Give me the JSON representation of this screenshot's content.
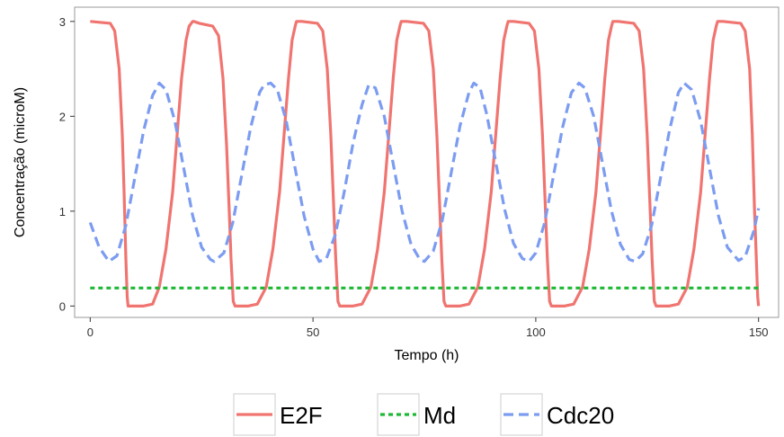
{
  "chart_data": {
    "type": "line",
    "title": "",
    "xlabel": "Tempo (h)",
    "ylabel": "Concentração (microM)",
    "xlim": [
      -3.5,
      154.5
    ],
    "ylim": [
      -0.12,
      3.15
    ],
    "x_ticks": [
      0,
      50,
      100,
      150
    ],
    "y_ticks": [
      0,
      1,
      2,
      3
    ],
    "x_tick_labels": [
      "0",
      "50",
      "100",
      "150"
    ],
    "y_tick_labels": [
      "0",
      "1",
      "2",
      "3"
    ],
    "grid": false,
    "legend_position": "bottom",
    "series": [
      {
        "name": "E2F",
        "color": "#f07470",
        "dash": "solid",
        "x": [
          0,
          4.5,
          5.5,
          6.5,
          7.2,
          7.6,
          8.0,
          8.3,
          8.5,
          9.0,
          12,
          14,
          15.5,
          17,
          18.5,
          19.5,
          20.5,
          21.5,
          22.2,
          23.0,
          23.3,
          24.5,
          27.5,
          28.8,
          29.8,
          30.6,
          31.2,
          31.6,
          32.1,
          32.5,
          35.5,
          37.5,
          39.5,
          41,
          42.5,
          43.5,
          44.5,
          45.3,
          46.0,
          46.3,
          47.5,
          51.0,
          52.2,
          53.2,
          54.0,
          54.6,
          55.1,
          55.6,
          56.0,
          59,
          61,
          63,
          64.5,
          66,
          67,
          68,
          68.8,
          69.5,
          69.8,
          71,
          74.8,
          76,
          77,
          77.8,
          78.4,
          78.9,
          79.4,
          79.8,
          83,
          85,
          87,
          88.5,
          90,
          91,
          92,
          92.8,
          93.5,
          93.8,
          95,
          98.5,
          99.7,
          100.7,
          101.5,
          102.1,
          102.6,
          103.1,
          103.5,
          106.5,
          108.5,
          110.5,
          112,
          113.5,
          114.5,
          115.5,
          116.3,
          117.0,
          117.3,
          118.5,
          122.0,
          123.2,
          124.2,
          125.0,
          125.6,
          126.1,
          126.6,
          127.0,
          130,
          132,
          134,
          135.5,
          137,
          138,
          139,
          139.8,
          140.5,
          140.8,
          142,
          146,
          147,
          148,
          148.6,
          149.1,
          149.5,
          149.8,
          150
        ],
        "y": [
          3.0,
          2.98,
          2.9,
          2.5,
          1.8,
          1.2,
          0.5,
          0.1,
          0,
          0,
          0,
          0.02,
          0.2,
          0.6,
          1.2,
          1.8,
          2.4,
          2.8,
          2.95,
          3.0,
          3.0,
          2.98,
          2.95,
          2.85,
          2.4,
          1.7,
          1.0,
          0.5,
          0.05,
          0,
          0,
          0.02,
          0.2,
          0.6,
          1.2,
          1.8,
          2.4,
          2.8,
          2.95,
          3.0,
          3.0,
          2.98,
          2.9,
          2.5,
          1.8,
          1.1,
          0.5,
          0.05,
          0,
          0,
          0.02,
          0.2,
          0.6,
          1.2,
          1.8,
          2.4,
          2.8,
          2.95,
          3.0,
          3.0,
          2.98,
          2.9,
          2.5,
          1.8,
          1.1,
          0.5,
          0.05,
          0,
          0,
          0.02,
          0.2,
          0.6,
          1.2,
          1.8,
          2.4,
          2.8,
          2.95,
          3.0,
          3.0,
          2.98,
          2.9,
          2.5,
          1.8,
          1.1,
          0.5,
          0.05,
          0,
          0,
          0.02,
          0.2,
          0.6,
          1.2,
          1.8,
          2.4,
          2.8,
          2.95,
          3.0,
          3.0,
          2.98,
          2.9,
          2.5,
          1.8,
          1.1,
          0.5,
          0.05,
          0,
          0,
          0.02,
          0.2,
          0.6,
          1.2,
          1.8,
          2.4,
          2.8,
          2.95,
          3.0,
          3.0,
          2.98,
          2.9,
          2.5,
          1.8,
          1.0,
          0.5,
          0.1,
          0
        ]
      },
      {
        "name": "Md",
        "color": "#1db835",
        "dash": "dotted",
        "x": [
          0,
          150
        ],
        "y": [
          0.19,
          0.19
        ]
      },
      {
        "name": "Cdc20",
        "color": "#7c9cf1",
        "dash": "dashed",
        "x": [
          0,
          2,
          4.2,
          6,
          8,
          10,
          12,
          14,
          15.5,
          17,
          19,
          21,
          23,
          25,
          27,
          27.8,
          30,
          32,
          34,
          36,
          38,
          39,
          40.5,
          42,
          44,
          46,
          48,
          50,
          51.4,
          53,
          55,
          57,
          59,
          61,
          62.5,
          64,
          66,
          68,
          70,
          72,
          74,
          75,
          77,
          79,
          81,
          83,
          85,
          86.1,
          87.5,
          89,
          91,
          93,
          95,
          97,
          98.5,
          100,
          102,
          104,
          106,
          108,
          109.7,
          111,
          113,
          115,
          117,
          119,
          121,
          122.3,
          124,
          126,
          128,
          130,
          132,
          133.3,
          135,
          137,
          139,
          141,
          143,
          145.5,
          147,
          149,
          150
        ],
        "y": [
          0.88,
          0.62,
          0.47,
          0.53,
          0.85,
          1.35,
          1.85,
          2.22,
          2.35,
          2.28,
          1.95,
          1.45,
          0.95,
          0.62,
          0.49,
          0.47,
          0.56,
          0.88,
          1.38,
          1.88,
          2.25,
          2.33,
          2.35,
          2.28,
          1.95,
          1.45,
          0.95,
          0.6,
          0.47,
          0.5,
          0.75,
          1.2,
          1.72,
          2.12,
          2.33,
          2.3,
          2.0,
          1.5,
          1.0,
          0.65,
          0.49,
          0.47,
          0.58,
          0.9,
          1.4,
          1.9,
          2.25,
          2.35,
          2.3,
          2.02,
          1.52,
          1.02,
          0.66,
          0.5,
          0.47,
          0.56,
          0.88,
          1.38,
          1.88,
          2.25,
          2.35,
          2.3,
          2.0,
          1.5,
          1.0,
          0.65,
          0.49,
          0.47,
          0.55,
          0.85,
          1.35,
          1.85,
          2.25,
          2.35,
          2.28,
          1.95,
          1.45,
          0.95,
          0.62,
          0.48,
          0.52,
          0.8,
          1.03
        ]
      }
    ]
  }
}
